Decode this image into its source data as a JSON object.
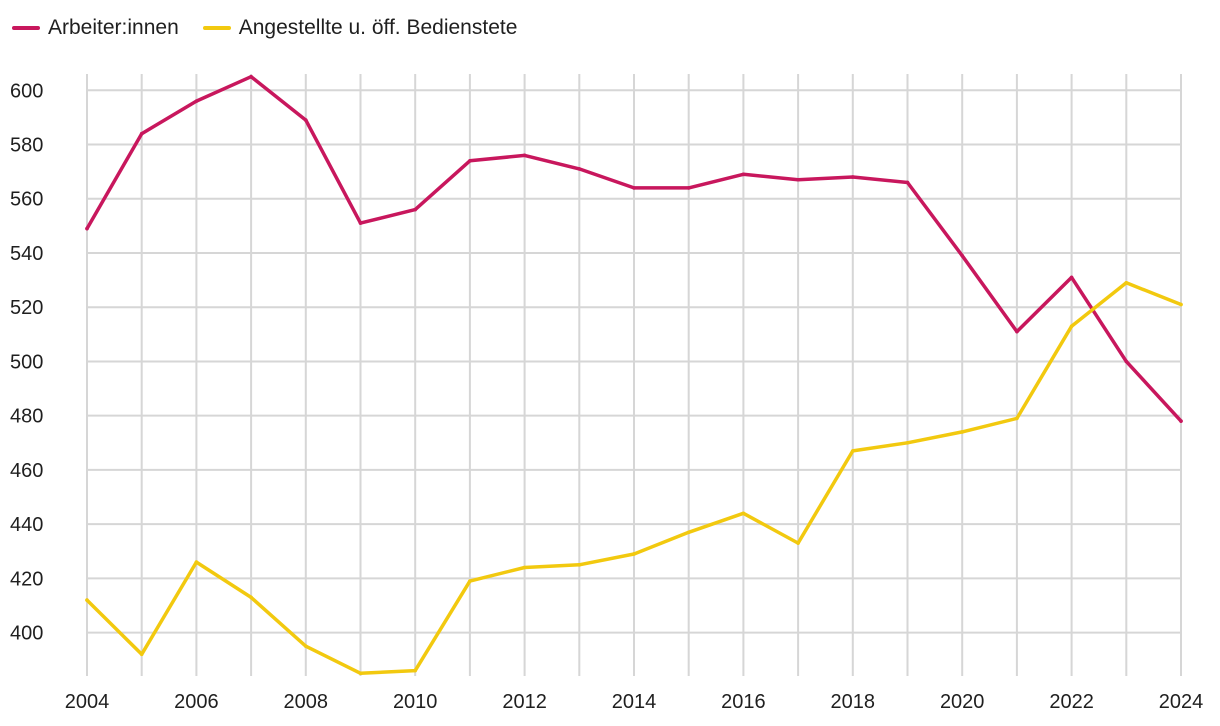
{
  "chart_data": {
    "type": "line",
    "x": [
      2004,
      2005,
      2006,
      2007,
      2008,
      2009,
      2010,
      2011,
      2012,
      2013,
      2014,
      2015,
      2016,
      2017,
      2018,
      2019,
      2020,
      2021,
      2022,
      2023,
      2024
    ],
    "x_tick_labels": [
      "2004",
      "2006",
      "2008",
      "2010",
      "2012",
      "2014",
      "2016",
      "2018",
      "2020",
      "2022",
      "2024"
    ],
    "y_ticks": [
      400,
      420,
      440,
      460,
      480,
      500,
      520,
      540,
      560,
      580,
      600
    ],
    "ylim": [
      384,
      606
    ],
    "xlim": [
      2004,
      2024
    ],
    "grid": true,
    "legend_position": "top-left",
    "series": [
      {
        "name": "Arbeiter:innen",
        "color": "#c8175d",
        "values": [
          549,
          584,
          596,
          605,
          589,
          551,
          556,
          574,
          576,
          571,
          564,
          564,
          569,
          567,
          568,
          566,
          539,
          511,
          531,
          500,
          478
        ]
      },
      {
        "name": "Angestellte u. öff. Bedienstete",
        "color": "#f2c90f",
        "values": [
          412,
          392,
          426,
          413,
          395,
          385,
          386,
          419,
          424,
          425,
          429,
          437,
          444,
          433,
          467,
          470,
          474,
          479,
          513,
          529,
          521
        ]
      }
    ]
  }
}
